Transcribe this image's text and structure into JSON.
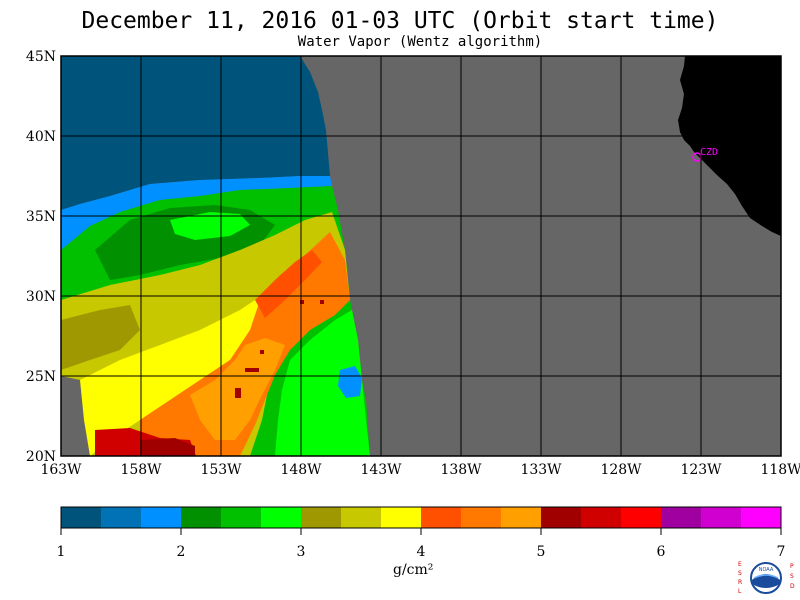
{
  "title": "December 11, 2016  01-03 UTC  (Orbit start time)",
  "subtitle": "Water Vapor (Wentz algorithm)",
  "map": {
    "lat_labels": [
      "45N",
      "40N",
      "35N",
      "30N",
      "25N",
      "20N"
    ],
    "lon_labels": [
      "163W",
      "158W",
      "153W",
      "148W",
      "143W",
      "138W",
      "133W",
      "128W",
      "123W",
      "118W"
    ],
    "station_label": "CZD",
    "colors": {
      "no_data": "#666666",
      "land": "#000000",
      "station": "#ff00ff"
    }
  },
  "colorbar": {
    "tick_labels": [
      "1",
      "2",
      "3",
      "4",
      "5",
      "6",
      "7"
    ],
    "unit": "g/cm²",
    "colors": [
      "#00537a",
      "#0072b5",
      "#0090ff",
      "#009000",
      "#00c000",
      "#00ff00",
      "#a09800",
      "#c8c800",
      "#ffff00",
      "#ff5000",
      "#ff7800",
      "#ffa000",
      "#a00000",
      "#d00000",
      "#ff0000",
      "#a000a0",
      "#d000d0",
      "#ff00ff"
    ]
  },
  "logo": {
    "left_letters": "ESRL",
    "right_letters": "PSD",
    "text": "NOAA"
  }
}
